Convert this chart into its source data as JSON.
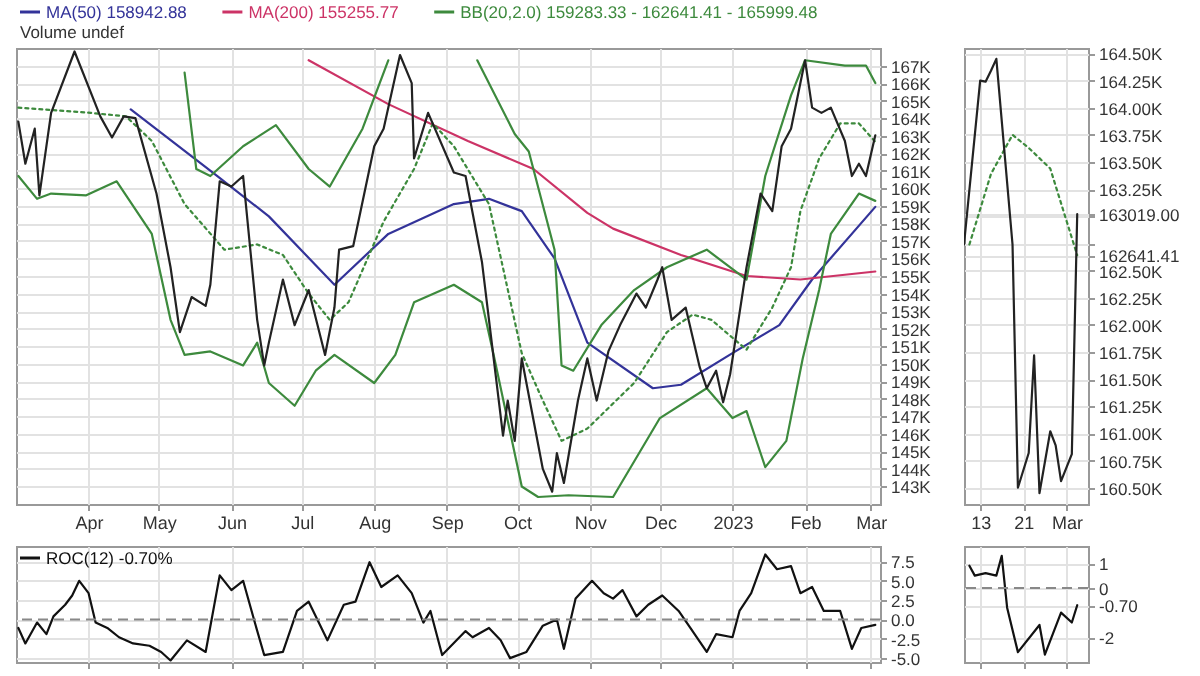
{
  "chart_data": [
    {
      "type": "line",
      "xlim": [
        "2022-03-01",
        "2023-03-05"
      ],
      "xticks": [
        {
          "value": "2022-04-01",
          "label": "Apr"
        },
        {
          "value": "2022-05-01",
          "label": "May"
        },
        {
          "value": "2022-06-01",
          "label": "Jun"
        },
        {
          "value": "2022-07-01",
          "label": "Jul"
        },
        {
          "value": "2022-08-01",
          "label": "Aug"
        },
        {
          "value": "2022-09-01",
          "label": "Sep"
        },
        {
          "value": "2022-10-01",
          "label": "Oct"
        },
        {
          "value": "2022-11-01",
          "label": "Nov"
        },
        {
          "value": "2022-12-01",
          "label": "Dec"
        },
        {
          "value": "2023-01-01",
          "label": "2023"
        },
        {
          "value": "2023-02-01",
          "label": "Feb"
        },
        {
          "value": "2023-03-01",
          "label": "Mar"
        }
      ],
      "ylim": [
        142000,
        168000
      ],
      "yticks": [
        {
          "value": 143000,
          "label": "143K"
        },
        {
          "value": 144000,
          "label": "144K"
        },
        {
          "value": 145000,
          "label": "145K"
        },
        {
          "value": 146000,
          "label": "146K"
        },
        {
          "value": 147000,
          "label": "147K"
        },
        {
          "value": 148000,
          "label": "148K"
        },
        {
          "value": 149000,
          "label": "149K"
        },
        {
          "value": 150000,
          "label": "150K"
        },
        {
          "value": 151000,
          "label": "151K"
        },
        {
          "value": 152000,
          "label": "152K"
        },
        {
          "value": 153000,
          "label": "153K"
        },
        {
          "value": 154000,
          "label": "154K"
        },
        {
          "value": 155000,
          "label": "155K"
        },
        {
          "value": 156000,
          "label": "156K"
        },
        {
          "value": 157000,
          "label": "157K"
        },
        {
          "value": 158000,
          "label": "158K"
        },
        {
          "value": 159000,
          "label": "159K"
        },
        {
          "value": 160000,
          "label": "160K"
        },
        {
          "value": 161000,
          "label": "161K"
        },
        {
          "value": 162000,
          "label": "162K"
        },
        {
          "value": 163000,
          "label": "163K"
        },
        {
          "value": 164000,
          "label": "164K"
        },
        {
          "value": 165000,
          "label": "165K"
        },
        {
          "value": 166000,
          "label": "166K"
        },
        {
          "value": 167000,
          "label": "167K"
        }
      ],
      "grid": true,
      "legend": "top left",
      "annotations": [
        "Volume undef"
      ],
      "series": [
        {
          "name": "MA(50) 158942.88",
          "color": "#333399",
          "x": [
            "2022-04-19",
            "2022-05-26",
            "2022-06-17",
            "2022-07-15",
            "2022-08-07",
            "2022-09-04",
            "2022-09-19",
            "2022-10-03",
            "2022-10-17",
            "2022-10-31",
            "2022-11-28",
            "2022-12-10",
            "2023-01-01",
            "2023-01-21",
            "2023-02-04",
            "2023-03-03"
          ],
          "values": [
            164500,
            160700,
            158400,
            154500,
            157400,
            159100,
            159400,
            158700,
            156000,
            151200,
            148600,
            148800,
            150600,
            152200,
            154800,
            158942.88
          ]
        },
        {
          "name": "MA(200) 155255.77",
          "color": "#cc3366",
          "x": [
            "2022-07-04",
            "2022-08-07",
            "2022-09-10",
            "2022-10-08",
            "2022-10-31",
            "2022-11-11",
            "2022-12-10",
            "2023-01-07",
            "2023-01-30",
            "2023-03-03"
          ],
          "values": [
            167300,
            164800,
            162700,
            161100,
            158600,
            157700,
            156200,
            155000,
            154800,
            155255.77
          ]
        },
        {
          "name": "BB(20,2.0) 159283.33 - 162641.41 - 165999.48",
          "color": "#3d8a3d",
          "x": [
            "2022-05-12",
            "2022-05-17",
            "2022-05-23",
            "2022-06-06",
            "2022-06-20",
            "2022-07-04",
            "2022-07-13",
            "2022-07-27",
            "2022-08-07",
            "2022-08-25",
            "2022-09-14",
            "2022-09-30",
            "2022-10-06",
            "2022-10-17",
            "2022-10-20",
            "2022-10-25",
            "2022-11-06",
            "2022-11-20",
            "2022-12-04",
            "2022-12-21",
            "2023-01-07",
            "2023-01-15",
            "2023-01-26",
            "2023-02-01",
            "2023-02-18",
            "2023-02-27",
            "2023-03-03"
          ],
          "values": [
            166600,
            161100,
            160700,
            162400,
            163600,
            161100,
            160100,
            163400,
            167300,
            null,
            167300,
            163100,
            162100,
            156500,
            149900,
            149600,
            152200,
            154200,
            155500,
            156500,
            154800,
            160700,
            165300,
            167300,
            167000,
            167000,
            165999.48
          ]
        },
        {
          "color": "#3d8a3d",
          "x": [
            "2022-03-02",
            "2022-03-10",
            "2022-03-16",
            "2022-03-31",
            "2022-04-13",
            "2022-04-28",
            "2022-05-06",
            "2022-05-12",
            "2022-05-23",
            "2022-06-06",
            "2022-06-12",
            "2022-06-17",
            "2022-06-28",
            "2022-07-07",
            "2022-07-15",
            "2022-08-01",
            "2022-08-10",
            "2022-08-18",
            "2022-09-04",
            "2022-09-16",
            "2022-09-21",
            "2022-10-03",
            "2022-10-10",
            "2022-10-23",
            "2022-11-11",
            "2022-12-01",
            "2022-12-21",
            "2023-01-01",
            "2023-01-07",
            "2023-01-15",
            "2023-01-24",
            "2023-01-31",
            "2023-02-07",
            "2023-02-12",
            "2023-02-24",
            "2023-03-03"
          ],
          "values": [
            160700,
            159400,
            159700,
            159600,
            160400,
            157400,
            152500,
            150500,
            150700,
            149900,
            151200,
            148900,
            147600,
            149600,
            150500,
            148900,
            150500,
            153500,
            154500,
            153500,
            150500,
            143000,
            142400,
            142500,
            142400,
            146900,
            148600,
            146900,
            147300,
            144100,
            145600,
            150300,
            154200,
            157400,
            159700,
            159283.33
          ]
        },
        {
          "color": "#3d8a3d",
          "line_style": "dotted",
          "x": [
            "2022-03-02",
            "2022-04-02",
            "2022-04-17",
            "2022-04-28",
            "2022-05-12",
            "2022-05-29",
            "2022-06-12",
            "2022-06-23",
            "2022-07-04",
            "2022-07-13",
            "2022-07-21",
            "2022-08-05",
            "2022-08-18",
            "2022-08-26",
            "2022-09-04",
            "2022-09-19",
            "2022-10-03",
            "2022-10-12",
            "2022-10-20",
            "2022-10-31",
            "2022-11-20",
            "2022-12-04",
            "2022-12-15",
            "2022-12-23",
            "2023-01-07",
            "2023-01-18",
            "2023-01-26",
            "2023-01-30",
            "2023-02-07",
            "2023-02-16",
            "2023-02-24",
            "2023-03-03"
          ],
          "values": [
            164600,
            164300,
            164100,
            162700,
            159100,
            156500,
            156800,
            156200,
            154000,
            152500,
            153500,
            158100,
            161100,
            163700,
            162400,
            159100,
            150600,
            147900,
            145600,
            146300,
            148900,
            151800,
            152800,
            152500,
            150800,
            153200,
            155500,
            158700,
            161700,
            163700,
            163700,
            162641.41
          ]
        },
        {
          "color": "#222222",
          "x": [
            "2022-03-02",
            "2022-03-05",
            "2022-03-09",
            "2022-03-11",
            "2022-03-16",
            "2022-03-26",
            "2022-04-06",
            "2022-04-11",
            "2022-04-16",
            "2022-04-21",
            "2022-04-30",
            "2022-05-06",
            "2022-05-10",
            "2022-05-15",
            "2022-05-21",
            "2022-05-23",
            "2022-05-27",
            "2022-06-01",
            "2022-06-06",
            "2022-06-12",
            "2022-06-15",
            "2022-06-17",
            "2022-06-23",
            "2022-06-28",
            "2022-07-04",
            "2022-07-11",
            "2022-07-15",
            "2022-07-17",
            "2022-07-23",
            "2022-08-01",
            "2022-08-05",
            "2022-08-12",
            "2022-08-17",
            "2022-08-18",
            "2022-08-24",
            "2022-09-04",
            "2022-09-09",
            "2022-09-16",
            "2022-09-25",
            "2022-09-27",
            "2022-09-30",
            "2022-10-03",
            "2022-10-12",
            "2022-10-16",
            "2022-10-18",
            "2022-10-21",
            "2022-10-27",
            "2022-10-31",
            "2022-11-04",
            "2022-11-09",
            "2022-11-14",
            "2022-11-21",
            "2022-11-25",
            "2022-11-30",
            "2022-12-02",
            "2022-12-06",
            "2022-12-12",
            "2022-12-18",
            "2022-12-21",
            "2022-12-25",
            "2022-12-28",
            "2022-12-31",
            "2023-01-03",
            "2023-01-07",
            "2023-01-13",
            "2023-01-18",
            "2023-01-22",
            "2023-01-26",
            "2023-01-30",
            "2023-02-01",
            "2023-02-04",
            "2023-02-08",
            "2023-02-12",
            "2023-02-18",
            "2023-02-21",
            "2023-02-24",
            "2023-02-27",
            "2023-03-03"
          ],
          "values": [
            163800,
            161400,
            163400,
            159600,
            164300,
            167800,
            164100,
            162900,
            164100,
            164000,
            159700,
            155500,
            151800,
            153800,
            153300,
            154500,
            160400,
            160100,
            160700,
            152500,
            149900,
            151200,
            154800,
            152200,
            154200,
            150500,
            153200,
            156500,
            156700,
            162400,
            163400,
            167600,
            166000,
            161700,
            164300,
            160900,
            160700,
            155800,
            145900,
            147900,
            145600,
            150300,
            144000,
            142700,
            144900,
            143200,
            147900,
            150300,
            147900,
            150700,
            152200,
            154000,
            153200,
            154800,
            155500,
            152500,
            153200,
            149800,
            148600,
            149600,
            147800,
            149400,
            152000,
            155500,
            159700,
            158700,
            162400,
            163400,
            166000,
            167300,
            164600,
            164300,
            164600,
            162700,
            160700,
            161400,
            160700,
            163019
          ]
        }
      ]
    },
    {
      "type": "line",
      "xlim": [
        "--02-10",
        "--03-05"
      ],
      "xticks": [
        {
          "value": "--02-13",
          "label": "13"
        },
        {
          "value": "--02-21",
          "label": "21"
        },
        {
          "value": "--03-01",
          "label": "Mar"
        }
      ],
      "ylim": [
        160350,
        164550
      ],
      "yticks": [
        {
          "value": 160500,
          "label": "160.50K"
        },
        {
          "value": 160750,
          "label": "160.75K"
        },
        {
          "value": 161000,
          "label": "161.00K"
        },
        {
          "value": 161250,
          "label": "161.25K"
        },
        {
          "value": 161500,
          "label": "161.50K"
        },
        {
          "value": 161750,
          "label": "161.75K"
        },
        {
          "value": 162000,
          "label": "162.00K"
        },
        {
          "value": 162250,
          "label": "162.25K"
        },
        {
          "value": 162500,
          "label": "162.50K"
        },
        {
          "value": 162641.41,
          "label": "162641.41"
        },
        {
          "value": 162750,
          "label": null
        },
        {
          "value": 163000,
          "label": null
        },
        {
          "value": 163019,
          "label": "163019.00"
        },
        {
          "value": 163250,
          "label": "163.25K"
        },
        {
          "value": 163500,
          "label": "163.50K"
        },
        {
          "value": 163750,
          "label": "163.75K"
        },
        {
          "value": 164000,
          "label": "164.00K"
        },
        {
          "value": 164250,
          "label": "164.25K"
        },
        {
          "value": 164500,
          "label": "164.50K"
        }
      ],
      "grid": true,
      "series": [
        {
          "color": "#3d8a3d",
          "line_style": "dotted",
          "x": [
            "--02-11",
            "--02-15",
            "--02-19",
            "--02-22",
            "--02-26",
            "--03-03"
          ],
          "values": [
            162740,
            163390,
            163750,
            163630,
            163440,
            162641.41
          ]
        },
        {
          "color": "#222222",
          "x": [
            "--02-10",
            "--02-13",
            "--02-14",
            "--02-15",
            "--02-16",
            "--02-19",
            "--02-20",
            "--02-22",
            "--02-23",
            "--02-24",
            "--02-26",
            "--02-27",
            "--02-28",
            "--03-02",
            "--03-03"
          ],
          "values": [
            162740,
            164250,
            164240,
            164340,
            164450,
            162740,
            160500,
            160820,
            161720,
            160450,
            161020,
            160890,
            160560,
            160810,
            163019
          ]
        }
      ]
    },
    {
      "type": "line",
      "xlim": [
        "2022-03-01",
        "2023-03-05"
      ],
      "xticks": [
        "2022-04-01",
        "2022-05-01",
        "2022-06-01",
        "2022-07-01",
        "2022-08-01",
        "2022-09-01",
        "2022-10-01",
        "2022-11-01",
        "2022-12-01",
        "2023-01-01",
        "2023-02-01",
        "2023-03-01"
      ],
      "ylim": [
        -5.5,
        9.5
      ],
      "yticks": [
        {
          "value": -5,
          "label": "-5.0"
        },
        {
          "value": -2.5,
          "label": "-2.5"
        },
        {
          "value": 0,
          "label": "0.0"
        },
        {
          "value": 2.5,
          "label": "2.5"
        },
        {
          "value": 5,
          "label": "5.0"
        },
        {
          "value": 7.5,
          "label": "7.5"
        }
      ],
      "grid": true,
      "legend": "top left",
      "tick_labels": "y",
      "ref_lines": [
        {
          "axis": "y",
          "value": 0,
          "color": "#888888",
          "line_style": "dashed"
        }
      ],
      "series": [
        {
          "name": "ROC(12) -0.70%",
          "color": "#111111",
          "x": [
            "2022-03-02",
            "2022-03-05",
            "2022-03-10",
            "2022-03-14",
            "2022-03-17",
            "2022-03-22",
            "2022-03-25",
            "2022-03-28",
            "2022-04-01",
            "2022-04-04",
            "2022-04-09",
            "2022-04-14",
            "2022-04-20",
            "2022-04-27",
            "2022-05-02",
            "2022-05-06",
            "2022-05-13",
            "2022-05-21",
            "2022-05-27",
            "2022-06-01",
            "2022-06-06",
            "2022-06-11",
            "2022-06-15",
            "2022-06-23",
            "2022-06-29",
            "2022-07-04",
            "2022-07-12",
            "2022-07-19",
            "2022-07-24",
            "2022-07-30",
            "2022-08-04",
            "2022-08-11",
            "2022-08-17",
            "2022-08-22",
            "2022-08-25",
            "2022-08-30",
            "2022-09-09",
            "2022-09-12",
            "2022-09-19",
            "2022-09-24",
            "2022-09-28",
            "2022-10-05",
            "2022-10-12",
            "2022-10-18",
            "2022-10-21",
            "2022-10-26",
            "2022-11-02",
            "2022-11-07",
            "2022-11-11",
            "2022-11-15",
            "2022-11-21",
            "2022-11-26",
            "2022-12-02",
            "2022-12-09",
            "2022-12-14",
            "2022-12-21",
            "2022-12-25",
            "2023-01-01",
            "2023-01-04",
            "2023-01-09",
            "2023-01-15",
            "2023-01-20",
            "2023-01-26",
            "2023-01-30",
            "2023-02-04",
            "2023-02-09",
            "2023-02-16",
            "2023-02-21",
            "2023-02-25",
            "2023-03-03"
          ],
          "values": [
            -1.1,
            -3.1,
            -0.4,
            -1.9,
            0.4,
            1.9,
            3.1,
            5.0,
            3.4,
            -0.4,
            -1.1,
            -2.3,
            -3.1,
            -3.4,
            -4.2,
            -5.3,
            -2.7,
            -4.2,
            5.7,
            3.8,
            5.0,
            -0.4,
            -4.6,
            -4.2,
            1.1,
            2.3,
            -2.7,
            1.9,
            2.3,
            7.4,
            4.2,
            5.7,
            3.4,
            -0.4,
            1.1,
            -4.6,
            -1.5,
            -2.3,
            -1.1,
            -2.7,
            -5.0,
            -4.2,
            -0.8,
            0.0,
            -3.8,
            2.7,
            5.0,
            3.4,
            2.7,
            3.8,
            0.4,
            1.9,
            3.1,
            1.1,
            -1.1,
            -4.2,
            -1.9,
            -2.3,
            1.1,
            3.4,
            8.4,
            6.5,
            6.9,
            3.4,
            4.2,
            1.1,
            1.1,
            -3.8,
            -1.1,
            -0.7
          ]
        }
      ]
    },
    {
      "type": "line",
      "xlim": [
        "--02-10",
        "--03-05"
      ],
      "xticks": [
        "--02-13",
        "--02-21",
        "--03-01"
      ],
      "ylim": [
        -3,
        1.7
      ],
      "yticks": [
        -2,
        {
          "value": -0.7,
          "label": "-0.70"
        },
        0,
        1
      ],
      "grid": true,
      "tick_labels": "y",
      "ref_lines": [
        {
          "axis": "y",
          "value": 0,
          "color": "#888888",
          "line_style": "dashed"
        }
      ],
      "series": [
        {
          "color": "#111111",
          "x": [
            "--02-11",
            "--02-12",
            "--02-14",
            "--02-16",
            "--02-17",
            "--02-18",
            "--02-20",
            "--02-24",
            "--02-25",
            "--02-28",
            "--03-02",
            "--03-03"
          ],
          "values": [
            0.9,
            0.5,
            0.6,
            0.5,
            1.3,
            -0.8,
            -2.6,
            -1.5,
            -2.7,
            -1.0,
            -1.4,
            -0.7
          ]
        }
      ]
    }
  ]
}
